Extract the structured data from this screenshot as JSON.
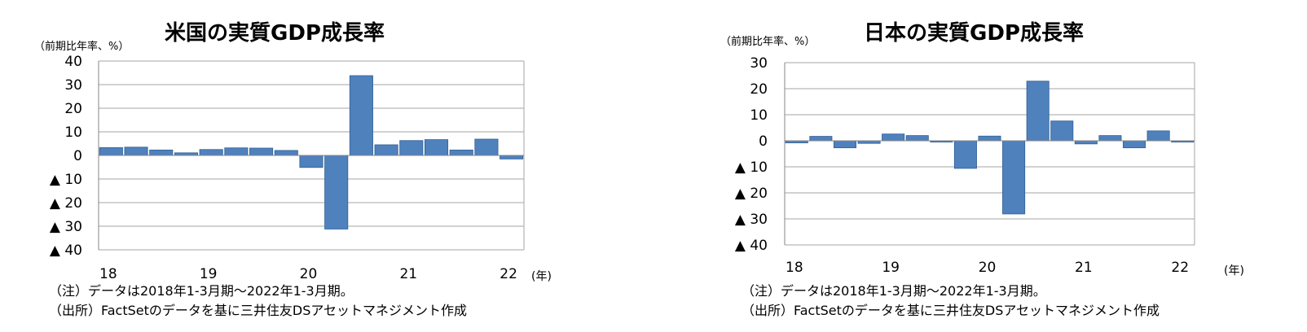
{
  "colors": {
    "bar": "#4f81bd",
    "bar_edge": "#2f5f94",
    "grid": "#a6a6a6",
    "axis": "#868686"
  },
  "chart_data": [
    {
      "type": "bar",
      "title": "米国の実質GDP成長率",
      "unit_label": "（前期比年率、%）",
      "x_unit_label": "(年)",
      "ylim": [
        -40,
        40
      ],
      "yticks": [
        40,
        30,
        20,
        10,
        0,
        -10,
        -20,
        -30,
        -40
      ],
      "ytick_labels": [
        "40",
        "30",
        "20",
        "10",
        "0",
        "▲ 10",
        "▲ 20",
        "▲ 30",
        "▲ 40"
      ],
      "xtick_labels": [
        "18",
        "19",
        "20",
        "21",
        "22"
      ],
      "grid": true,
      "values": [
        3.3,
        3.5,
        2.3,
        1.1,
        2.5,
        3.2,
        3.1,
        2.1,
        -5.1,
        -31.2,
        33.8,
        4.5,
        6.3,
        6.7,
        2.3,
        6.9,
        -1.5
      ]
    },
    {
      "type": "bar",
      "title": "日本の実質GDP成長率",
      "unit_label": "（前期比年率、%）",
      "x_unit_label": "(年)",
      "ylim": [
        -40,
        30
      ],
      "yticks": [
        30,
        20,
        10,
        0,
        -10,
        -20,
        -30,
        -40
      ],
      "ytick_labels": [
        "30",
        "20",
        "10",
        "0",
        "▲ 10",
        "▲ 20",
        "▲ 30",
        "▲ 40"
      ],
      "xtick_labels": [
        "18",
        "19",
        "20",
        "21",
        "22"
      ],
      "grid": true,
      "values": [
        -0.8,
        1.7,
        -2.7,
        -1.0,
        2.6,
        2.0,
        -0.5,
        -10.6,
        1.8,
        -28.1,
        22.9,
        7.6,
        -1.2,
        2.0,
        -2.7,
        3.8,
        -0.5
      ]
    }
  ],
  "notes": {
    "note_line": "（注）データは2018年1-3月期～2022年1-3月期。",
    "source_line": "（出所）FactSetのデータを基に三井住友DSアセットマネジメント作成"
  }
}
